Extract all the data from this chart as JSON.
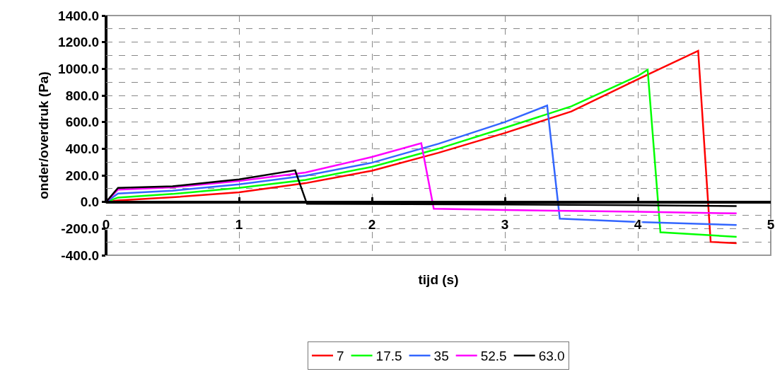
{
  "chart_data": {
    "type": "line",
    "xlabel": "tijd (s)",
    "ylabel": "onder/overdruk (Pa)",
    "xlim": [
      0,
      5
    ],
    "xticks": [
      0,
      1,
      2,
      3,
      4,
      5
    ],
    "ylim": [
      -400,
      1400
    ],
    "yticks": [
      {
        "value": -400,
        "label": "-400.0"
      },
      {
        "value": -200,
        "label": "-200.0"
      },
      {
        "value": 0,
        "label": "0.0"
      },
      {
        "value": 200,
        "label": "200.0"
      },
      {
        "value": 400,
        "label": "400.0"
      },
      {
        "value": 600,
        "label": "600.0"
      },
      {
        "value": 800,
        "label": "800.0"
      },
      {
        "value": 1000,
        "label": "1000.0"
      },
      {
        "value": 1200,
        "label": "1200.0"
      },
      {
        "value": 1400,
        "label": "1400.0"
      }
    ],
    "grid": true,
    "legend": "bottom",
    "marker": "none",
    "line_style": "solid",
    "series": [
      {
        "name": "7",
        "color": "#ff0000",
        "x": [
          0,
          0.09,
          0.5,
          1,
          1.5,
          2,
          2.5,
          3,
          3.5,
          4,
          4.454,
          4.548,
          4.743
        ],
        "values": [
          0,
          12,
          35,
          72,
          141,
          235,
          369,
          518,
          680,
          921,
          1135,
          -300,
          -310
        ]
      },
      {
        "name": "17.5",
        "color": "#00ff00",
        "x": [
          0,
          0.09,
          0.5,
          1,
          1.5,
          2,
          2.5,
          3,
          3.5,
          4,
          4.074,
          4.17,
          4.743
        ],
        "values": [
          0,
          33,
          60,
          106,
          166,
          264,
          400,
          557,
          718,
          946,
          993,
          -228,
          -262
        ]
      },
      {
        "name": "35",
        "color": "#3366ff",
        "x": [
          0,
          0.09,
          0.5,
          1,
          1.5,
          2,
          2.5,
          3,
          3.318,
          3.413,
          4,
          4.743
        ],
        "values": [
          0,
          63,
          85,
          132,
          197,
          295,
          437,
          600,
          724,
          -125,
          -150,
          -173
        ]
      },
      {
        "name": "52.5",
        "color": "#ff00ff",
        "x": [
          0,
          0.09,
          0.5,
          1,
          1.5,
          2,
          2.371,
          2.465,
          3,
          4,
          4.743
        ],
        "values": [
          0,
          93,
          110,
          158,
          221,
          338,
          441,
          -51,
          -60,
          -74,
          -86
        ]
      },
      {
        "name": "63.0",
        "color": "#000000",
        "x": [
          0,
          0.09,
          0.5,
          1,
          1.422,
          1.511,
          3,
          4,
          4.743
        ],
        "values": [
          0,
          106,
          118,
          170,
          238,
          -14,
          -19,
          -25,
          -31
        ]
      }
    ]
  }
}
